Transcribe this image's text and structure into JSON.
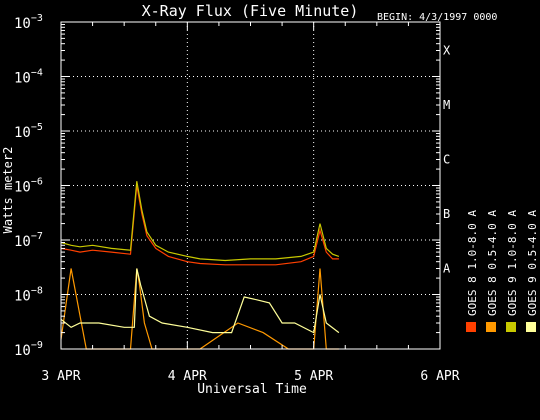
{
  "chart_data": {
    "type": "line",
    "title": "X-Ray Flux (Five Minute)",
    "begin_label": "BEGIN: 4/3/1997 0000",
    "xlabel": "Universal Time",
    "ylabel": "Watts meter2",
    "x_ticks": [
      "3 APR",
      "4 APR",
      "5 APR",
      "6 APR"
    ],
    "xlim_days": [
      0,
      3
    ],
    "y_scale": "log",
    "ylim": [
      1e-09,
      0.001
    ],
    "y_tick_exponents": [
      "-9",
      "-8",
      "-7",
      "-6",
      "-5",
      "-4",
      "-3"
    ],
    "y_tick_base": "10",
    "flare_classes": [
      {
        "label": "A",
        "exponent": -7.5
      },
      {
        "label": "B",
        "exponent": -6.5
      },
      {
        "label": "C",
        "exponent": -5.5
      },
      {
        "label": "M",
        "exponent": -4.5
      },
      {
        "label": "X",
        "exponent": -3.5
      }
    ],
    "grid": true,
    "legend_position": "right (vertical)",
    "series": [
      {
        "name": "GOES 8 1.0-8.0 A",
        "color": "#ff4000",
        "x": [
          0,
          0.08,
          0.15,
          0.25,
          0.4,
          0.55,
          0.6,
          0.64,
          0.68,
          0.75,
          0.85,
          1.0,
          1.1,
          1.3,
          1.5,
          1.7,
          1.9,
          2.0,
          2.05,
          2.1,
          2.15,
          2.2
        ],
        "y": [
          7e-08,
          6.5e-08,
          6e-08,
          6.5e-08,
          6e-08,
          5.5e-08,
          1e-06,
          3e-07,
          1.2e-07,
          7e-08,
          5e-08,
          4e-08,
          3.7e-08,
          3.5e-08,
          3.5e-08,
          3.5e-08,
          4e-08,
          5e-08,
          1.5e-07,
          6e-08,
          4.5e-08,
          4.5e-08
        ]
      },
      {
        "name": "GOES 8 0.5-4.0 A",
        "color": "#ff9900",
        "x": [
          0,
          0.08,
          0.2,
          0.4,
          0.55,
          0.6,
          0.62,
          0.66,
          0.72,
          0.9,
          1.1,
          1.4,
          1.6,
          1.8,
          1.95,
          2.0,
          2.05,
          2.1,
          2.2
        ],
        "y": [
          1.5e-09,
          3e-08,
          1e-09,
          1e-09,
          1e-09,
          3e-08,
          1.6e-08,
          3e-09,
          1e-09,
          1e-09,
          1e-09,
          3e-09,
          2e-09,
          1e-09,
          1e-09,
          1e-09,
          3e-08,
          1e-09,
          1e-09
        ]
      },
      {
        "name": "GOES 9 1.0-8.0 A",
        "color": "#c8c800",
        "x": [
          0,
          0.08,
          0.15,
          0.25,
          0.4,
          0.55,
          0.6,
          0.64,
          0.68,
          0.75,
          0.85,
          1.0,
          1.1,
          1.3,
          1.5,
          1.7,
          1.9,
          2.0,
          2.05,
          2.1,
          2.15,
          2.2
        ],
        "y": [
          9e-08,
          8e-08,
          7.5e-08,
          8e-08,
          7e-08,
          6.5e-08,
          1.2e-06,
          3.5e-07,
          1.4e-07,
          8e-08,
          6e-08,
          5e-08,
          4.5e-08,
          4.2e-08,
          4.5e-08,
          4.5e-08,
          5e-08,
          6e-08,
          2e-07,
          7e-08,
          5.5e-08,
          5e-08
        ]
      },
      {
        "name": "GOES 9 0.5-4.0 A",
        "color": "#ffff99",
        "x": [
          0,
          0.08,
          0.15,
          0.3,
          0.5,
          0.58,
          0.6,
          0.63,
          0.7,
          0.8,
          1.0,
          1.2,
          1.35,
          1.45,
          1.55,
          1.65,
          1.75,
          1.85,
          2.0,
          2.05,
          2.1,
          2.2
        ],
        "y": [
          3.5e-09,
          2.5e-09,
          3e-09,
          3e-09,
          2.5e-09,
          2.5e-09,
          3e-08,
          1.5e-08,
          4e-09,
          3e-09,
          2.5e-09,
          2e-09,
          2e-09,
          9e-09,
          8e-09,
          7e-09,
          3e-09,
          3e-09,
          2e-09,
          1e-08,
          3e-09,
          2e-09
        ]
      }
    ]
  }
}
